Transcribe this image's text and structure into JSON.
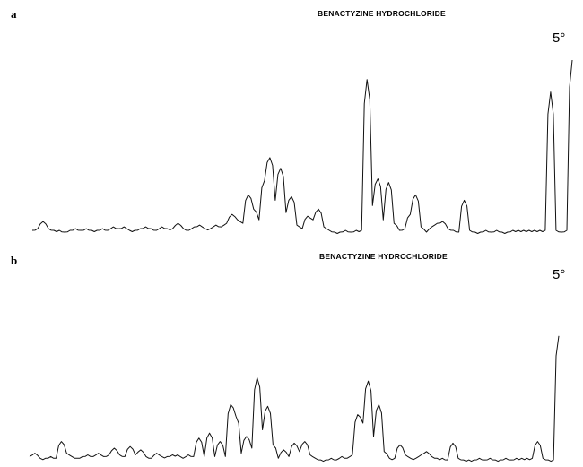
{
  "chart_data": [
    {
      "type": "line",
      "panel": "a",
      "title": "BENACTYZINE HYDROCHLORIDE",
      "annotation": "5°",
      "xlabel": "",
      "ylabel": "",
      "grid": false,
      "legend": "none",
      "xlim": [
        0,
        100
      ],
      "ylim": [
        0,
        100
      ],
      "x": [
        0,
        1,
        2,
        3,
        4,
        5,
        6,
        7,
        8,
        9,
        10,
        11,
        12,
        13,
        14,
        15,
        16,
        17,
        18,
        19,
        20,
        21,
        22,
        23,
        24,
        25,
        26,
        27,
        28,
        29,
        30,
        31,
        32,
        33,
        34,
        35,
        36,
        37,
        38,
        39,
        40,
        41,
        42,
        43,
        44,
        45,
        46,
        47,
        48,
        49,
        50,
        51,
        52,
        53,
        54,
        55,
        56,
        57,
        58,
        59,
        60,
        61,
        62,
        63,
        64,
        65,
        66,
        67,
        68,
        69,
        70,
        71,
        72,
        73,
        74,
        75,
        76,
        77,
        78,
        79,
        80,
        81,
        82,
        83,
        84,
        85,
        86,
        87,
        88,
        89,
        90,
        91,
        92,
        93,
        94,
        95,
        96,
        97,
        98,
        99,
        100
      ],
      "series": [
        {
          "values": [
            2,
            3,
            7,
            3,
            2,
            2,
            1,
            2,
            3,
            2,
            3,
            2,
            2,
            3,
            2,
            4,
            3,
            4,
            2,
            2,
            3,
            4,
            3,
            2,
            4,
            3,
            3,
            6,
            3,
            2,
            4,
            5,
            3,
            3,
            5,
            4,
            6,
            11,
            8,
            6,
            22,
            14,
            8,
            30,
            43,
            19,
            37,
            12,
            21,
            5,
            3,
            10,
            8,
            14,
            4,
            2,
            1,
            1,
            2,
            1,
            2,
            2,
            87,
            16,
            31,
            8,
            29,
            6,
            2,
            3,
            11,
            22,
            4,
            1,
            4,
            6,
            7,
            3,
            2,
            1,
            19,
            2,
            1,
            1,
            2,
            1,
            2,
            1,
            1,
            2,
            2,
            2,
            2,
            2,
            2,
            2,
            80,
            2,
            1,
            2,
            98
          ]
        }
      ]
    },
    {
      "type": "line",
      "panel": "b",
      "title": "BENACTYZINE HYDROCHLORIDE",
      "annotation": "5°",
      "xlabel": "",
      "ylabel": "",
      "grid": false,
      "legend": "none",
      "xlim": [
        0,
        100
      ],
      "ylim": [
        0,
        100
      ],
      "x": [
        0,
        1,
        2,
        3,
        4,
        5,
        6,
        7,
        8,
        9,
        10,
        11,
        12,
        13,
        14,
        15,
        16,
        17,
        18,
        19,
        20,
        21,
        22,
        23,
        24,
        25,
        26,
        27,
        28,
        29,
        30,
        31,
        32,
        33,
        34,
        35,
        36,
        37,
        38,
        39,
        40,
        41,
        42,
        43,
        44,
        45,
        46,
        47,
        48,
        49,
        50,
        51,
        52,
        53,
        54,
        55,
        56,
        57,
        58,
        59,
        60,
        61,
        62,
        63,
        64,
        65,
        66,
        67,
        68,
        69,
        70,
        71,
        72,
        73,
        74,
        75,
        76,
        77,
        78,
        79,
        80,
        81,
        82,
        83,
        84,
        85,
        86,
        87,
        88,
        89,
        90,
        91,
        92,
        93,
        94,
        95,
        96,
        97,
        98,
        99,
        100
      ],
      "series": [
        {
          "values": [
            3,
            5,
            2,
            2,
            3,
            2,
            12,
            5,
            3,
            2,
            3,
            4,
            3,
            5,
            3,
            4,
            8,
            4,
            3,
            9,
            4,
            7,
            3,
            2,
            5,
            3,
            3,
            4,
            4,
            2,
            4,
            3,
            14,
            3,
            17,
            3,
            12,
            3,
            34,
            27,
            5,
            15,
            8,
            50,
            19,
            33,
            10,
            2,
            7,
            3,
            11,
            6,
            12,
            4,
            2,
            1,
            1,
            2,
            1,
            3,
            2,
            4,
            28,
            23,
            48,
            15,
            34,
            6,
            2,
            2,
            10,
            4,
            2,
            2,
            4,
            6,
            3,
            2,
            2,
            1,
            11,
            2,
            1,
            1,
            1,
            2,
            1,
            2,
            1,
            1,
            2,
            1,
            2,
            2,
            2,
            2,
            12,
            2,
            1,
            1,
            75
          ]
        }
      ]
    }
  ]
}
